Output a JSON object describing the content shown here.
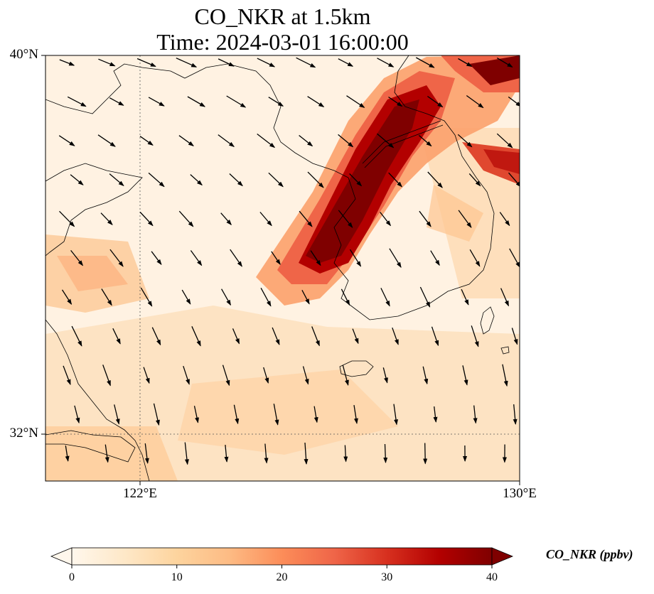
{
  "title": {
    "line1": "CO_NKR at 1.5km",
    "line2": "Time: 2024-03-01 16:00:00"
  },
  "map": {
    "variable": "CO_NKR",
    "height": "1.5km",
    "time": "2024-03-01 16:00:00",
    "extent": {
      "lon_min": 119.5,
      "lon_max": 130,
      "lat_min": 31,
      "lat_max": 40
    },
    "lat_ticks": [
      {
        "value": 40,
        "label": "40°N"
      },
      {
        "value": 32,
        "label": "32°N"
      }
    ],
    "lon_ticks": [
      {
        "value": 122,
        "label": "122°E"
      },
      {
        "value": 130,
        "label": "130°E"
      }
    ],
    "gridlines": {
      "lat": [
        32
      ],
      "lon": [
        122
      ],
      "style": "dotted"
    }
  },
  "colorbar": {
    "label": "CO_NKR (ppbv)",
    "colormap": "OrRd",
    "vmin": 0,
    "vmax": 40,
    "ticks": [
      0,
      10,
      20,
      30,
      40
    ],
    "extend": "both",
    "colors": [
      "#fff7ec",
      "#fee8c8",
      "#fdd49e",
      "#fdbb84",
      "#fc8d59",
      "#ef6548",
      "#d7301f",
      "#b30000",
      "#7f0000"
    ]
  }
}
